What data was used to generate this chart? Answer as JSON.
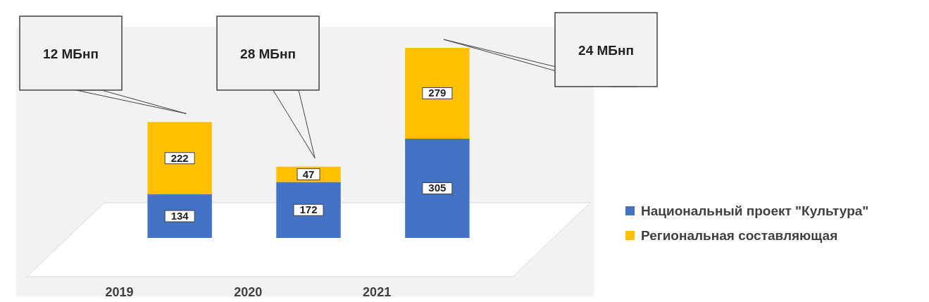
{
  "chart_data": {
    "type": "bar",
    "stacked": true,
    "categories": [
      "2019",
      "2020",
      "2021"
    ],
    "series": [
      {
        "name": "Национальный проект \"Культура\"",
        "color": "#4472c4",
        "values": [
          134,
          172,
          305
        ]
      },
      {
        "name": "Региональная составляющая",
        "color": "#ffc000",
        "values": [
          222,
          47,
          279
        ]
      }
    ],
    "data_labels": true,
    "legend": "right",
    "annotations": [
      "12 МБнп",
      "28 МБнп",
      "24 МБнп"
    ]
  }
}
